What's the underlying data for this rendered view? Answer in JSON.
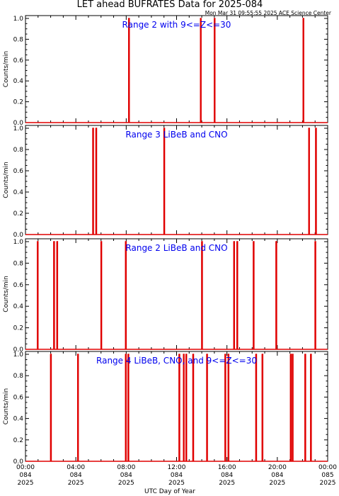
{
  "title": "LET ahead BUFRATES Data for 2025-084",
  "timestamp": "Mon Mar 31 09:55:55 2025 ACE Science Center",
  "xlabel": "UTC Day of Year",
  "line_color": "#e00000",
  "title_color": "#0000ee",
  "chart_data": [
    {
      "type": "line",
      "title": "Range 2 with 9<=Z<=30",
      "ylabel": "Counts/min",
      "xlim": [
        0,
        24
      ],
      "ylim": [
        0,
        1.0
      ],
      "spikes_hours": [
        8.2,
        13.9,
        15.0,
        22.05
      ]
    },
    {
      "type": "line",
      "title": "Range 3 LiBeB and CNO",
      "ylabel": "Counts/min",
      "xlim": [
        0,
        24
      ],
      "ylim": [
        0,
        1.0
      ],
      "spikes_hours": [
        5.35,
        5.6,
        11.0,
        22.5,
        23.05
      ]
    },
    {
      "type": "line",
      "title": "Range 2 LiBeB and CNO",
      "ylabel": "Counts/min",
      "xlim": [
        0,
        24
      ],
      "ylim": [
        0,
        1.0
      ],
      "spikes_hours": [
        0.95,
        2.25,
        2.5,
        6.0,
        7.95,
        14.0,
        16.55,
        16.8,
        18.1,
        19.9,
        23.0
      ]
    },
    {
      "type": "line",
      "title": "Range 4 LiBeB, CNO, and 9<=Z<=30",
      "ylabel": "Counts/min",
      "xlim": [
        0,
        24
      ],
      "ylim": [
        0,
        1.0
      ],
      "spikes_hours": [
        2.0,
        4.15,
        7.95,
        8.15,
        12.2,
        12.55,
        12.75,
        13.3,
        14.4,
        15.85,
        16.1,
        18.3,
        18.8,
        21.05,
        21.2,
        22.2,
        22.65
      ]
    }
  ],
  "x_ticks": [
    {
      "time": "00:00",
      "day": "084",
      "year": "2025"
    },
    {
      "time": "04:00",
      "day": "084",
      "year": "2025"
    },
    {
      "time": "08:00",
      "day": "084",
      "year": "2025"
    },
    {
      "time": "12:00",
      "day": "084",
      "year": "2025"
    },
    {
      "time": "16:00",
      "day": "084",
      "year": "2025"
    },
    {
      "time": "20:00",
      "day": "084",
      "year": "2025"
    },
    {
      "time": "00:00",
      "day": "085",
      "year": "2025"
    }
  ],
  "y_ticks": [
    "0.0",
    "0.2",
    "0.4",
    "0.6",
    "0.8",
    "1.0"
  ]
}
